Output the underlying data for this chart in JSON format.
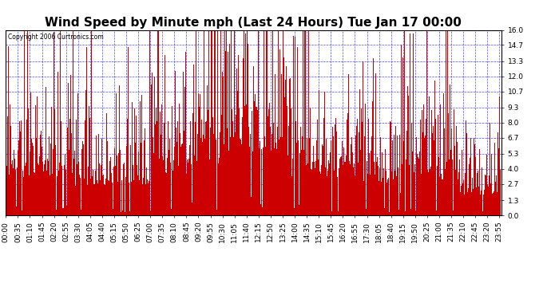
{
  "title": "Wind Speed by Minute mph (Last 24 Hours) Tue Jan 17 00:00",
  "copyright": "Copyright 2006 Curtronics.com",
  "bar_color": "#cc0000",
  "background_color": "#ffffff",
  "plot_bg_color": "#ffffff",
  "yticks": [
    0.0,
    1.3,
    2.7,
    4.0,
    5.3,
    6.7,
    8.0,
    9.3,
    10.7,
    12.0,
    13.3,
    14.7,
    16.0
  ],
  "ylim": [
    0.0,
    16.0
  ],
  "grid_color": "#0000ff",
  "title_fontsize": 11,
  "tick_fontsize": 6.5,
  "xtick_interval": 35,
  "minutes_per_day": 1440
}
